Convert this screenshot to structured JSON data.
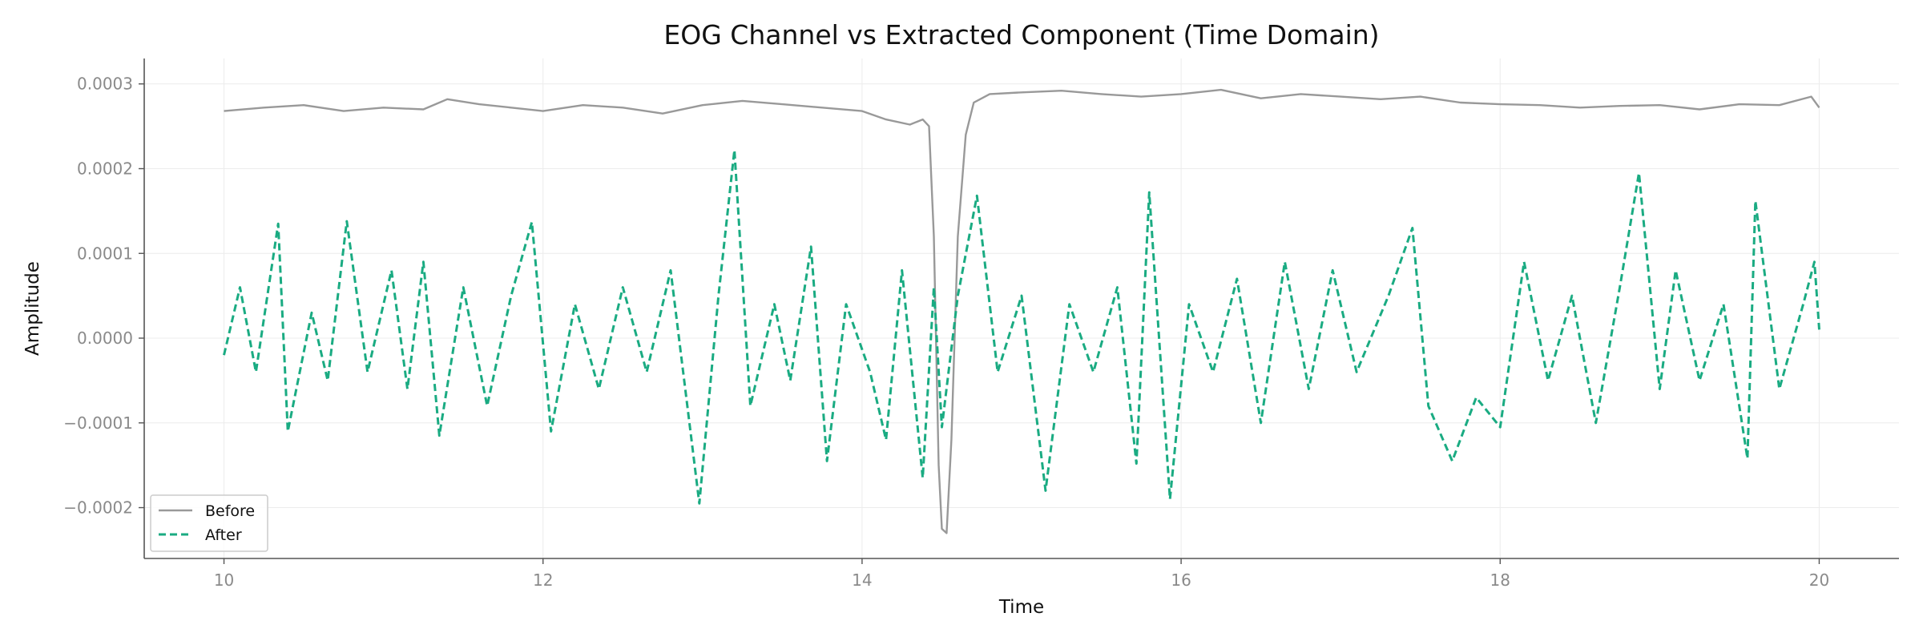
{
  "chart_data": {
    "type": "line",
    "title": "EOG Channel vs Extracted Component (Time Domain)",
    "xlabel": "Time",
    "ylabel": "Amplitude",
    "xlim": [
      9.5,
      20.5
    ],
    "ylim": [
      -0.00026,
      0.00033
    ],
    "x_ticks": [
      10,
      12,
      14,
      16,
      18,
      20
    ],
    "x_tick_labels": [
      "10",
      "12",
      "14",
      "16",
      "18",
      "20"
    ],
    "y_ticks": [
      -0.0002,
      -0.0001,
      0.0,
      0.0001,
      0.0002,
      0.0003
    ],
    "y_tick_labels": [
      "−0.0002",
      "−0.0001",
      "0.0000",
      "0.0001",
      "0.0002",
      "0.0003"
    ],
    "grid": true,
    "legend_position": "bottom-left",
    "series": [
      {
        "name": "Before",
        "color": "#999999",
        "style": "solid",
        "points": [
          [
            10.0,
            0.000268
          ],
          [
            10.25,
            0.000272
          ],
          [
            10.5,
            0.000275
          ],
          [
            10.75,
            0.000268
          ],
          [
            11.0,
            0.000272
          ],
          [
            11.25,
            0.00027
          ],
          [
            11.4,
            0.000282
          ],
          [
            11.6,
            0.000276
          ],
          [
            11.8,
            0.000272
          ],
          [
            12.0,
            0.000268
          ],
          [
            12.25,
            0.000275
          ],
          [
            12.5,
            0.000272
          ],
          [
            12.75,
            0.000265
          ],
          [
            13.0,
            0.000275
          ],
          [
            13.25,
            0.00028
          ],
          [
            13.5,
            0.000276
          ],
          [
            13.75,
            0.000272
          ],
          [
            14.0,
            0.000268
          ],
          [
            14.15,
            0.000258
          ],
          [
            14.3,
            0.000252
          ],
          [
            14.38,
            0.000258
          ],
          [
            14.42,
            0.00025
          ],
          [
            14.45,
            0.00012
          ],
          [
            14.48,
            -0.00015
          ],
          [
            14.5,
            -0.000225
          ],
          [
            14.53,
            -0.00023
          ],
          [
            14.56,
            -0.00012
          ],
          [
            14.6,
            0.00012
          ],
          [
            14.65,
            0.00024
          ],
          [
            14.7,
            0.000278
          ],
          [
            14.8,
            0.000288
          ],
          [
            15.0,
            0.00029
          ],
          [
            15.25,
            0.000292
          ],
          [
            15.5,
            0.000288
          ],
          [
            15.75,
            0.000285
          ],
          [
            16.0,
            0.000288
          ],
          [
            16.25,
            0.000293
          ],
          [
            16.5,
            0.000283
          ],
          [
            16.75,
            0.000288
          ],
          [
            17.0,
            0.000285
          ],
          [
            17.25,
            0.000282
          ],
          [
            17.5,
            0.000285
          ],
          [
            17.75,
            0.000278
          ],
          [
            18.0,
            0.000276
          ],
          [
            18.25,
            0.000275
          ],
          [
            18.5,
            0.000272
          ],
          [
            18.75,
            0.000274
          ],
          [
            19.0,
            0.000275
          ],
          [
            19.25,
            0.00027
          ],
          [
            19.5,
            0.000276
          ],
          [
            19.75,
            0.000275
          ],
          [
            19.95,
            0.000285
          ],
          [
            20.0,
            0.000272
          ]
        ]
      },
      {
        "name": "After",
        "color": "#1aab82",
        "style": "dashed",
        "points": [
          [
            10.0,
            -2e-05
          ],
          [
            10.1,
            6e-05
          ],
          [
            10.2,
            -4e-05
          ],
          [
            10.34,
            0.000135
          ],
          [
            10.4,
            -0.00011
          ],
          [
            10.55,
            3e-05
          ],
          [
            10.65,
            -5e-05
          ],
          [
            10.77,
            0.000138
          ],
          [
            10.9,
            -4e-05
          ],
          [
            11.05,
            8e-05
          ],
          [
            11.15,
            -6e-05
          ],
          [
            11.25,
            9e-05
          ],
          [
            11.35,
            -0.000115
          ],
          [
            11.5,
            6e-05
          ],
          [
            11.65,
            -8e-05
          ],
          [
            11.8,
            5e-05
          ],
          [
            11.93,
            0.000137
          ],
          [
            12.05,
            -0.00011
          ],
          [
            12.2,
            4e-05
          ],
          [
            12.35,
            -6e-05
          ],
          [
            12.5,
            6e-05
          ],
          [
            12.65,
            -4e-05
          ],
          [
            12.8,
            8e-05
          ],
          [
            12.98,
            -0.000195
          ],
          [
            13.1,
            5e-05
          ],
          [
            13.2,
            0.000222
          ],
          [
            13.3,
            -8e-05
          ],
          [
            13.45,
            4e-05
          ],
          [
            13.55,
            -5e-05
          ],
          [
            13.68,
            0.000108
          ],
          [
            13.78,
            -0.000145
          ],
          [
            13.9,
            4e-05
          ],
          [
            14.05,
            -4e-05
          ],
          [
            14.15,
            -0.00012
          ],
          [
            14.25,
            8e-05
          ],
          [
            14.38,
            -0.000165
          ],
          [
            14.45,
            6e-05
          ],
          [
            14.5,
            -0.000105
          ],
          [
            14.6,
            5e-05
          ],
          [
            14.72,
            0.000168
          ],
          [
            14.85,
            -4e-05
          ],
          [
            15.0,
            5e-05
          ],
          [
            15.15,
            -0.00018
          ],
          [
            15.3,
            4e-05
          ],
          [
            15.45,
            -4e-05
          ],
          [
            15.6,
            6e-05
          ],
          [
            15.72,
            -0.000148
          ],
          [
            15.8,
            0.000172
          ],
          [
            15.93,
            -0.00019
          ],
          [
            16.05,
            4e-05
          ],
          [
            16.2,
            -4e-05
          ],
          [
            16.35,
            7e-05
          ],
          [
            16.5,
            -0.0001
          ],
          [
            16.65,
            9e-05
          ],
          [
            16.8,
            -6e-05
          ],
          [
            16.95,
            8e-05
          ],
          [
            17.1,
            -4e-05
          ],
          [
            17.3,
            5e-05
          ],
          [
            17.45,
            0.00013
          ],
          [
            17.55,
            -8e-05
          ],
          [
            17.7,
            -0.000145
          ],
          [
            17.85,
            -7e-05
          ],
          [
            18.0,
            -0.000105
          ],
          [
            18.15,
            9e-05
          ],
          [
            18.3,
            -5e-05
          ],
          [
            18.45,
            5e-05
          ],
          [
            18.6,
            -0.0001
          ],
          [
            18.75,
            6e-05
          ],
          [
            18.87,
            0.000195
          ],
          [
            19.0,
            -6e-05
          ],
          [
            19.1,
            8e-05
          ],
          [
            19.25,
            -5e-05
          ],
          [
            19.4,
            4e-05
          ],
          [
            19.55,
            -0.000142
          ],
          [
            19.6,
            0.000162
          ],
          [
            19.75,
            -6e-05
          ],
          [
            19.9,
            4e-05
          ],
          [
            19.97,
            9e-05
          ],
          [
            20.0,
            1e-05
          ]
        ]
      }
    ]
  }
}
